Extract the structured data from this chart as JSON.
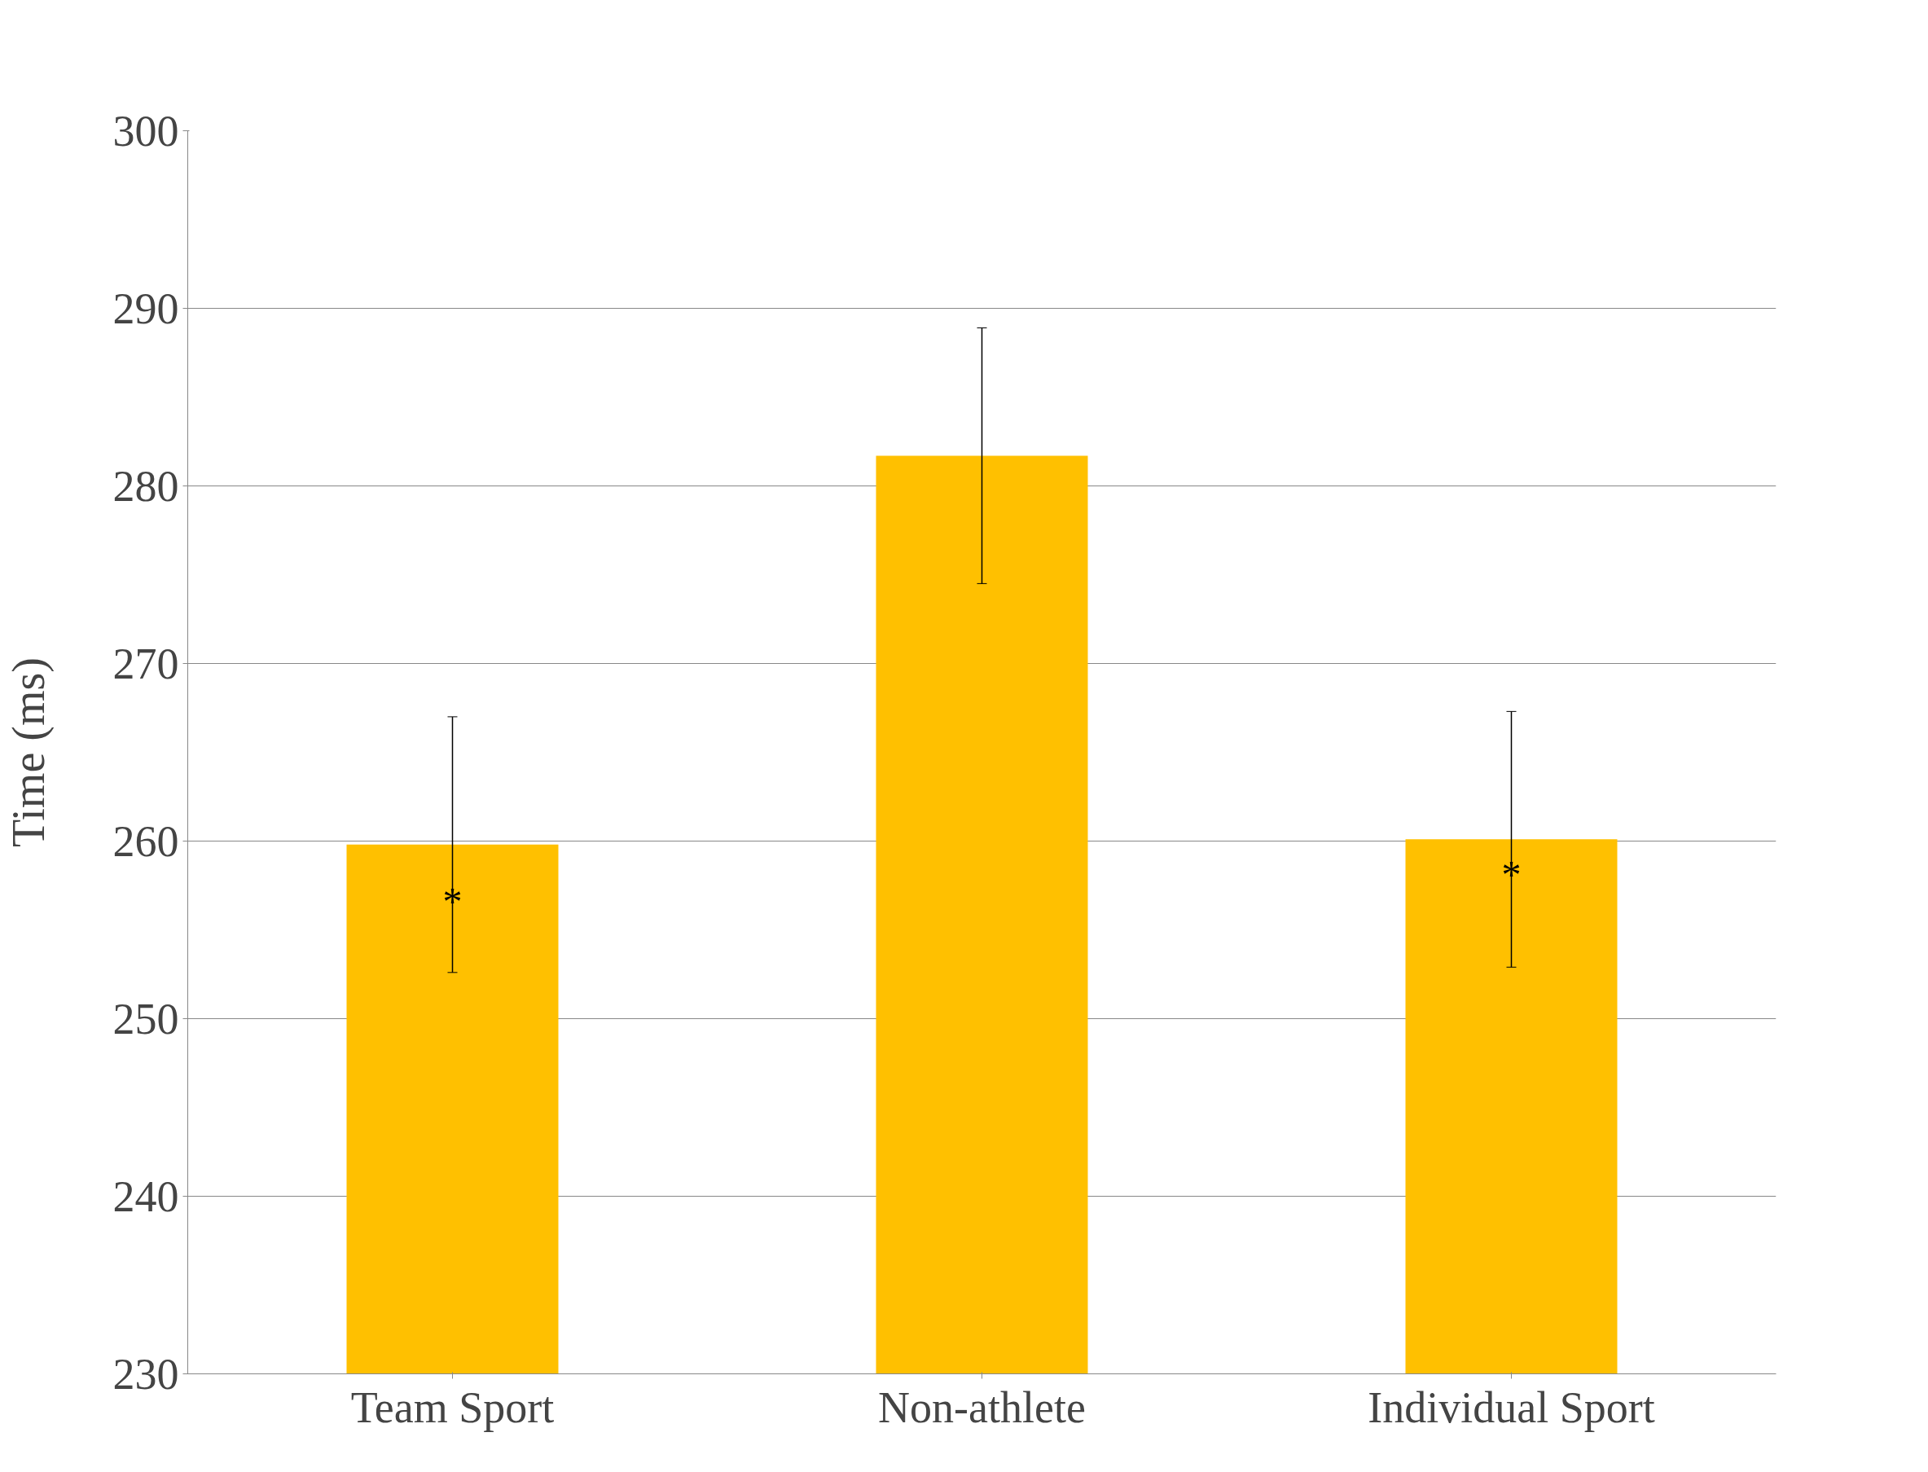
{
  "chart_data": {
    "type": "bar",
    "ylabel": "Time (ms)",
    "categories": [
      "Team Sport",
      "Non-athlete",
      "Individual Sport"
    ],
    "values": [
      259.8,
      281.7,
      260.1
    ],
    "color": "#ffc000",
    "errors": [
      7.2,
      7.2,
      7.2
    ],
    "ylim": [
      230,
      300
    ],
    "yticks": [
      230,
      240,
      250,
      260,
      270,
      280,
      290,
      300
    ],
    "grid": "y",
    "annotations": [
      {
        "text": "*",
        "x": "Team Sport",
        "y": 256.6
      },
      {
        "text": "*",
        "x": "Individual Sport",
        "y": 258.1
      }
    ]
  }
}
